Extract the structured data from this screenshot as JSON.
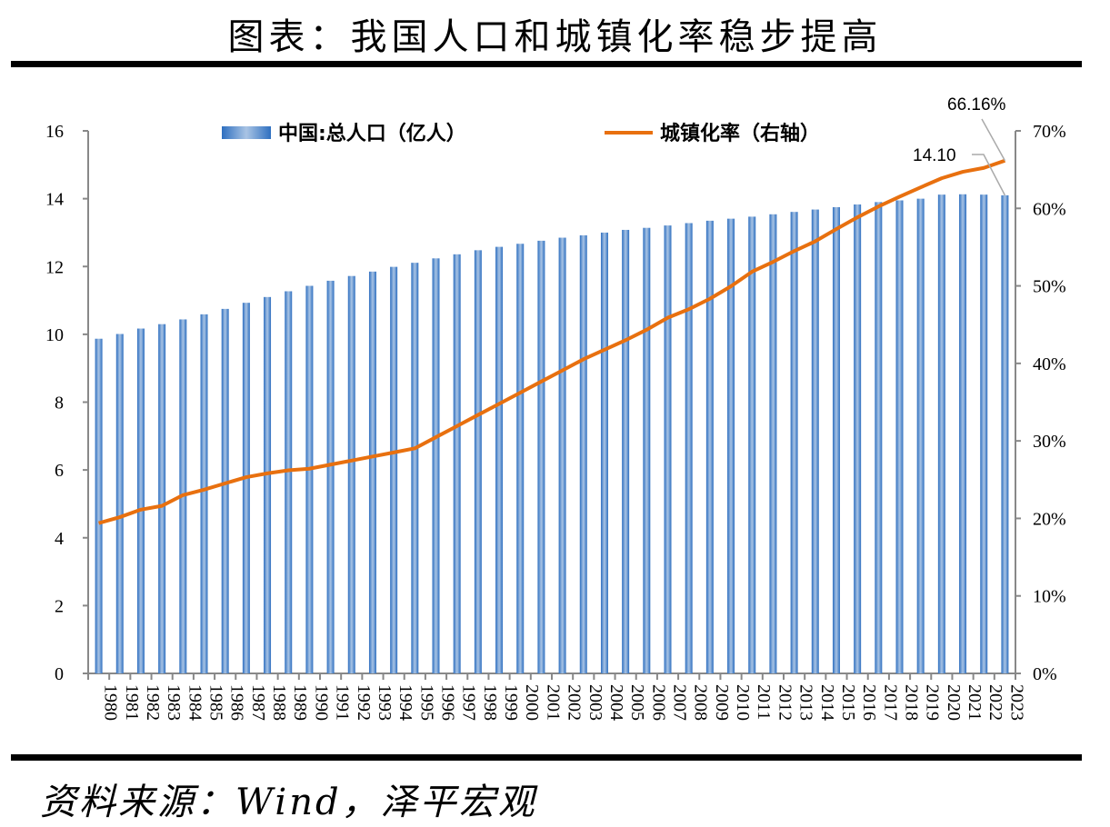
{
  "title": "图表：我国人口和城镇化率稳步提高",
  "source": "资料来源：Wind，泽平宏观",
  "chart_data": {
    "type": "bar+line",
    "title": "图表：我国人口和城镇化率稳步提高",
    "categories": [
      "1980",
      "1981",
      "1982",
      "1983",
      "1984",
      "1985",
      "1986",
      "1987",
      "1988",
      "1989",
      "1990",
      "1991",
      "1992",
      "1993",
      "1994",
      "1995",
      "1996",
      "1997",
      "1998",
      "1999",
      "2000",
      "2001",
      "2002",
      "2003",
      "2004",
      "2005",
      "2006",
      "2007",
      "2008",
      "2009",
      "2010",
      "2011",
      "2012",
      "2013",
      "2014",
      "2015",
      "2016",
      "2017",
      "2018",
      "2019",
      "2020",
      "2021",
      "2022",
      "2023"
    ],
    "series": [
      {
        "name": "中国:总人口（亿人）",
        "type": "bar",
        "axis": "left",
        "color": "#2e75c6",
        "values": [
          9.87,
          10.01,
          10.17,
          10.3,
          10.44,
          10.59,
          10.75,
          10.93,
          11.1,
          11.27,
          11.43,
          11.58,
          11.72,
          11.85,
          11.99,
          12.11,
          12.24,
          12.36,
          12.48,
          12.58,
          12.67,
          12.76,
          12.85,
          12.92,
          13.0,
          13.08,
          13.14,
          13.21,
          13.28,
          13.35,
          13.41,
          13.47,
          13.54,
          13.61,
          13.68,
          13.75,
          13.83,
          13.9,
          13.95,
          14.0,
          14.12,
          14.13,
          14.12,
          14.1
        ]
      },
      {
        "name": "城镇化率（右轴）",
        "type": "line",
        "axis": "right",
        "color": "#e8700f",
        "values": [
          19.39,
          20.16,
          21.13,
          21.62,
          23.01,
          23.71,
          24.52,
          25.32,
          25.81,
          26.21,
          26.41,
          26.94,
          27.46,
          27.99,
          28.51,
          29.04,
          30.48,
          31.91,
          33.35,
          34.78,
          36.22,
          37.66,
          39.09,
          40.53,
          41.76,
          42.99,
          44.34,
          45.89,
          46.99,
          48.34,
          49.95,
          51.83,
          53.1,
          54.49,
          55.75,
          57.33,
          58.84,
          60.24,
          61.5,
          62.71,
          63.89,
          64.72,
          65.22,
          66.16
        ]
      }
    ],
    "y_left": {
      "range": [
        0,
        16
      ],
      "ticks": [
        "0",
        "2",
        "4",
        "6",
        "8",
        "10",
        "12",
        "14",
        "16"
      ]
    },
    "y_right": {
      "range": [
        0,
        70
      ],
      "ticks": [
        "0%",
        "10%",
        "20%",
        "30%",
        "40%",
        "50%",
        "60%",
        "70%"
      ]
    },
    "annotations": [
      {
        "text": "14.10",
        "series": 0,
        "category": "2023"
      },
      {
        "text": "66.16%",
        "series": 1,
        "category": "2023"
      }
    ],
    "legend": "top",
    "grid": false
  }
}
